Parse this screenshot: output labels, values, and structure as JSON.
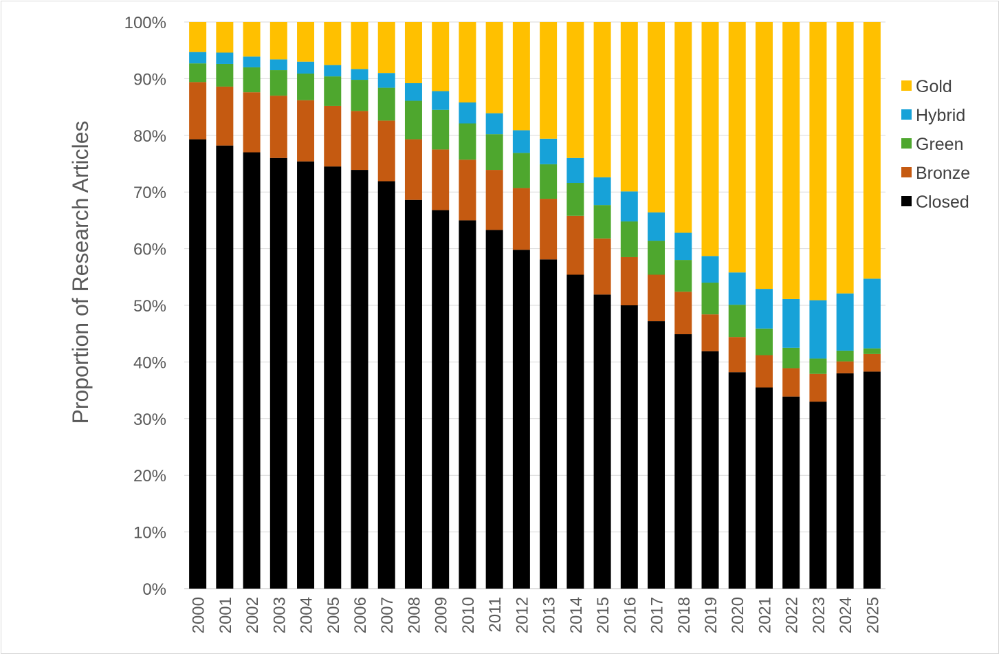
{
  "chart_data": {
    "type": "bar",
    "stacked": true,
    "title": "",
    "xlabel": "",
    "ylabel": "Proportion of Research Articles",
    "ylim": [
      0,
      100
    ],
    "yticks": [
      "0%",
      "10%",
      "20%",
      "30%",
      "40%",
      "50%",
      "60%",
      "70%",
      "80%",
      "90%",
      "100%"
    ],
    "grid": true,
    "legend_position": "right",
    "categories": [
      "2000",
      "2001",
      "2002",
      "2003",
      "2004",
      "2005",
      "2006",
      "2007",
      "2008",
      "2009",
      "2010",
      "2011",
      "2012",
      "2013",
      "2014",
      "2015",
      "2016",
      "2017",
      "2018",
      "2019",
      "2020",
      "2021",
      "2022",
      "2023",
      "2024",
      "2025"
    ],
    "series": [
      {
        "name": "Closed",
        "color": "#000000",
        "values": [
          79.3,
          78.2,
          77.0,
          76.0,
          75.4,
          74.5,
          73.9,
          71.9,
          68.6,
          66.8,
          65.0,
          63.3,
          59.8,
          58.1,
          55.4,
          51.9,
          50.0,
          47.2,
          44.9,
          41.9,
          38.2,
          35.5,
          33.9,
          33.0,
          38.0,
          38.3
        ]
      },
      {
        "name": "Bronze",
        "color": "#C55A11",
        "values": [
          10.1,
          10.4,
          10.6,
          11.0,
          10.8,
          10.7,
          10.4,
          10.7,
          10.7,
          10.7,
          10.7,
          10.6,
          10.9,
          10.7,
          10.4,
          9.9,
          8.5,
          8.2,
          7.5,
          6.5,
          6.2,
          5.7,
          5.0,
          4.9,
          2.1,
          3.1
        ]
      },
      {
        "name": "Green",
        "color": "#4EA72E",
        "values": [
          3.3,
          4.0,
          4.4,
          4.5,
          4.7,
          5.2,
          5.5,
          5.8,
          6.8,
          7.0,
          6.4,
          6.3,
          6.2,
          6.1,
          5.8,
          5.9,
          6.3,
          6.0,
          5.6,
          5.6,
          5.7,
          4.7,
          3.6,
          2.7,
          1.9,
          1.0
        ]
      },
      {
        "name": "Hybrid",
        "color": "#17A2D8",
        "values": [
          2.0,
          2.0,
          1.9,
          1.9,
          2.1,
          2.0,
          1.9,
          2.6,
          3.1,
          3.3,
          3.7,
          3.7,
          4.0,
          4.5,
          4.4,
          4.9,
          5.3,
          5.0,
          4.8,
          4.7,
          5.7,
          7.0,
          8.6,
          10.3,
          10.1,
          12.3
        ]
      },
      {
        "name": "Gold",
        "color": "#FFC000",
        "values": [
          5.3,
          5.4,
          6.1,
          6.6,
          7.0,
          7.6,
          8.3,
          9.0,
          10.8,
          12.2,
          14.2,
          16.1,
          19.1,
          20.6,
          24.0,
          27.4,
          29.9,
          33.6,
          37.2,
          41.3,
          44.2,
          47.1,
          48.9,
          49.1,
          47.9,
          45.3
        ]
      }
    ],
    "legend_order": [
      "Gold",
      "Hybrid",
      "Green",
      "Bronze",
      "Closed"
    ]
  }
}
